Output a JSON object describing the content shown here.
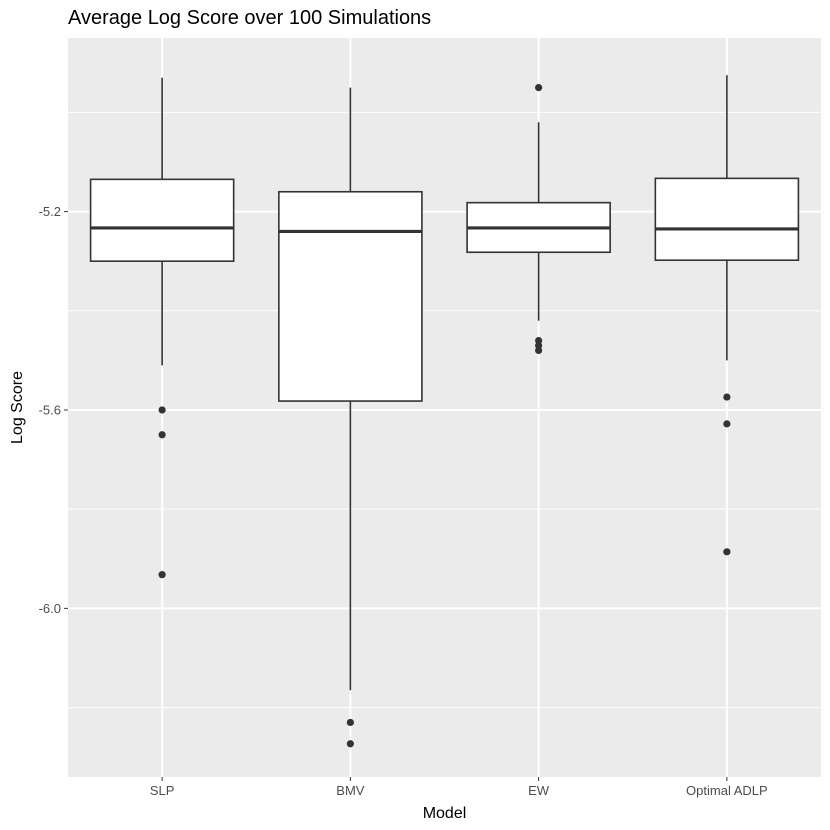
{
  "chart_data": {
    "type": "boxplot",
    "title": "Average Log Score over 100 Simulations",
    "xlabel": "Model",
    "ylabel": "Log Score",
    "ylim": [
      -6.34,
      -4.85
    ],
    "yticks": [
      -5.2,
      -5.6,
      -6.0
    ],
    "ytick_labels": [
      "-5.2",
      "-5.6",
      "-6.0"
    ],
    "grid": true,
    "categories": [
      "SLP",
      "BMV",
      "EW",
      "Optimal ADLP"
    ],
    "boxes": [
      {
        "category": "SLP",
        "whisker_low": -5.51,
        "q1": -5.3,
        "median": -5.233,
        "q3": -5.135,
        "whisker_high": -4.93,
        "outliers": [
          -5.6,
          -5.65,
          -5.932
        ]
      },
      {
        "category": "BMV",
        "whisker_low": -6.165,
        "q1": -5.582,
        "median": -5.24,
        "q3": -5.16,
        "whisker_high": -4.95,
        "outliers": [
          -6.23,
          -6.273
        ]
      },
      {
        "category": "EW",
        "whisker_low": -5.42,
        "q1": -5.282,
        "median": -5.233,
        "q3": -5.182,
        "whisker_high": -5.02,
        "outliers": [
          -4.95,
          -5.46,
          -5.47,
          -5.48
        ]
      },
      {
        "category": "Optimal ADLP",
        "whisker_low": -5.5,
        "q1": -5.298,
        "median": -5.235,
        "q3": -5.133,
        "whisker_high": -4.925,
        "outliers": [
          -5.574,
          -5.628,
          -5.886
        ]
      }
    ],
    "colors": {
      "panel": "#ebebeb",
      "grid": "#ffffff",
      "box_fill": "#ffffff",
      "box_line": "#333333",
      "point": "#333333"
    }
  }
}
